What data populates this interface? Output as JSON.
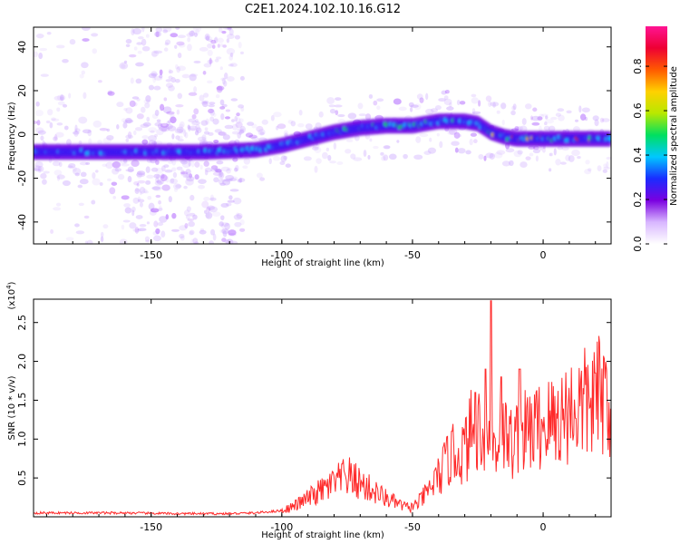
{
  "figure": {
    "title": "C2E1.2024.102.10.16.G12"
  },
  "colorbar": {
    "label": "Normalized spectral amplitude",
    "ticks": [
      "0.0",
      "0.2",
      "0.4",
      "0.6",
      "0.8"
    ],
    "colors": [
      "#ffffff",
      "#d8b6ff",
      "#7a00e0",
      "#1a2cff",
      "#00c8ff",
      "#00e060",
      "#b8e800",
      "#ffd000",
      "#ff5a00",
      "#ee0033",
      "#ff1493"
    ]
  },
  "chart_data": [
    {
      "type": "heatmap",
      "xlabel": "Height of straight line (km)",
      "ylabel": "Frequency (Hz)",
      "xlim": [
        -195,
        26
      ],
      "ylim": [
        -50,
        49
      ],
      "xticks": [
        "-150",
        "-100",
        "-50",
        "0"
      ],
      "yticks": [
        "40",
        "20",
        "0",
        "-20",
        "-40"
      ],
      "ridge": {
        "x": [
          -195,
          -160,
          -130,
          -110,
          -100,
          -90,
          -80,
          -70,
          -60,
          -50,
          -40,
          -30,
          -25,
          -20,
          -15,
          -10,
          0,
          10,
          20,
          25
        ],
        "freq": [
          -8,
          -8,
          -8,
          -7,
          -5,
          -2,
          1,
          3,
          4,
          4,
          6,
          6,
          5,
          1,
          -1,
          -2,
          -2,
          -2,
          -2,
          -2
        ]
      }
    },
    {
      "type": "line",
      "xlabel": "Height of straight line (km)",
      "ylabel": "SNR (10 * v/v)",
      "y_multiplier": "(x10",
      "y_multiplier_exp": "4",
      "y_multiplier_close": ")",
      "xlim": [
        -195,
        26
      ],
      "ylim": [
        0,
        2.8
      ],
      "xticks": [
        "-150",
        "-100",
        "-50",
        "0"
      ],
      "yticks": [
        "2.5",
        "2.0",
        "1.5",
        "1.0",
        "0.5"
      ],
      "series": [
        {
          "color": "#ff2a2a",
          "x": [
            -195,
            -180,
            -160,
            -140,
            -120,
            -110,
            -100,
            -95,
            -90,
            -85,
            -80,
            -75,
            -70,
            -65,
            -60,
            -57,
            -54,
            -51,
            -48,
            -45,
            -42,
            -39,
            -36,
            -33,
            -30,
            -27,
            -24,
            -21,
            -18,
            -15,
            -12,
            -9,
            -6,
            -3,
            0,
            5,
            10,
            15,
            20,
            25
          ],
          "y": [
            0.05,
            0.05,
            0.05,
            0.04,
            0.04,
            0.05,
            0.08,
            0.15,
            0.25,
            0.35,
            0.45,
            0.55,
            0.45,
            0.35,
            0.25,
            0.2,
            0.15,
            0.12,
            0.18,
            0.3,
            0.45,
            0.6,
            0.8,
            0.85,
            0.9,
            1.2,
            1.25,
            1.0,
            1.0,
            1.1,
            1.0,
            1.1,
            1.15,
            1.2,
            1.25,
            1.3,
            1.45,
            1.5,
            1.6,
            1.7
          ]
        }
      ],
      "peaks": [
        {
          "x": -20,
          "y": 2.78
        },
        {
          "x": -22,
          "y": 1.9
        },
        {
          "x": -26,
          "y": 1.6
        },
        {
          "x": -16,
          "y": 1.8
        },
        {
          "x": -9,
          "y": 1.9
        },
        {
          "x": -35,
          "y": 1.1
        },
        {
          "x": -77,
          "y": 0.68
        },
        {
          "x": 20,
          "y": 1.85
        }
      ]
    }
  ]
}
